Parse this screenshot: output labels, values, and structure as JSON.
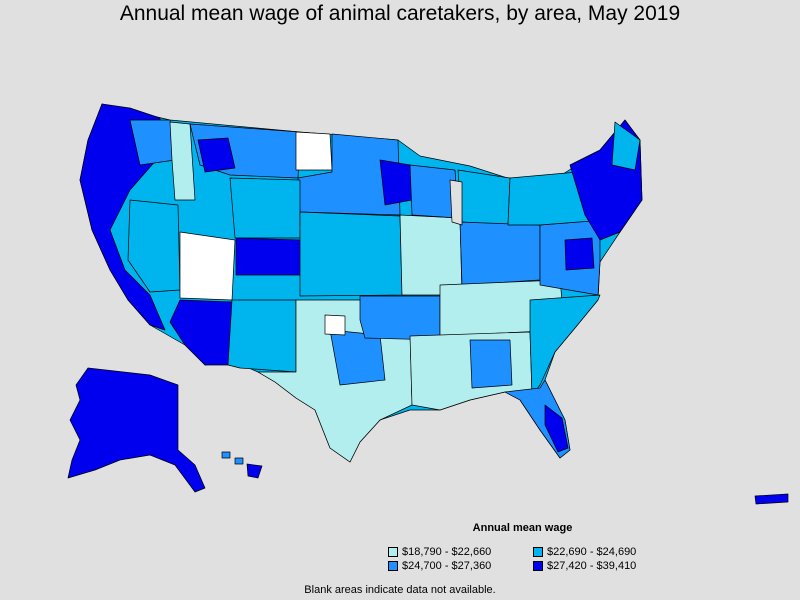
{
  "title": "Annual mean wage of animal caretakers, by area, May 2019",
  "legend": {
    "title": "Annual mean wage",
    "items": [
      {
        "label": "$18,790 - $22,660",
        "color": "#b3eeee"
      },
      {
        "label": "$22,690 - $24,690",
        "color": "#00b4ee"
      },
      {
        "label": "$24,700 - $27,360",
        "color": "#1e90ff"
      },
      {
        "label": "$27,420 - $39,410",
        "color": "#0000ee"
      }
    ]
  },
  "note": "Blank areas indicate data not available.",
  "colors": {
    "background": "#e0e0e0",
    "no_data": "#ffffff",
    "border": "#000000"
  }
}
